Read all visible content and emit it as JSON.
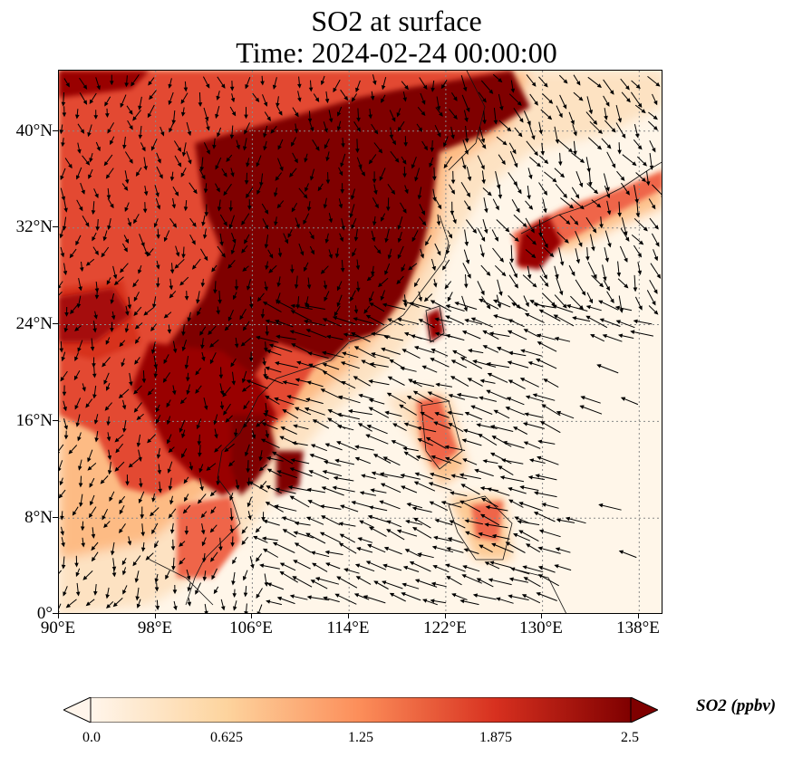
{
  "title": {
    "line1": "SO2 at surface",
    "line2": "Time: 2024-02-24 00:00:00"
  },
  "map": {
    "lon_range": [
      90,
      140
    ],
    "lat_range": [
      0,
      45
    ],
    "x_ticks": [
      "90°E",
      "98°E",
      "106°E",
      "114°E",
      "122°E",
      "130°E",
      "138°E"
    ],
    "y_ticks": [
      "0°",
      "8°N",
      "16°N",
      "24°N",
      "32°N",
      "40°N"
    ],
    "gridlines": true
  },
  "colorbar": {
    "title": "SO2 (ppbv)",
    "tick_labels": [
      "0.0",
      "0.625",
      "1.25",
      "1.875",
      "2.5"
    ],
    "min": 0.0,
    "max": 2.5,
    "colors": [
      "#fff5eb",
      "#fdd49e",
      "#fc8d59",
      "#d7301f",
      "#7f0000"
    ]
  }
}
